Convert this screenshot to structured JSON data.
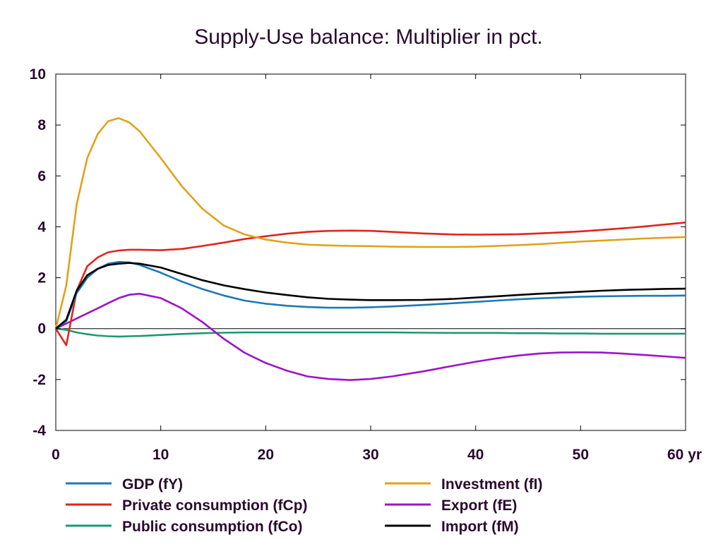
{
  "chart_data": {
    "type": "line",
    "title": "Supply-Use balance: Multiplier in pct.",
    "x_tick_labels": [
      "0",
      "10",
      "20",
      "30",
      "40",
      "50",
      "60 yr"
    ],
    "x_ticks": [
      0,
      10,
      20,
      30,
      40,
      50,
      60
    ],
    "y_ticks": [
      -4,
      -2,
      0,
      2,
      4,
      6,
      8,
      10
    ],
    "xlim": [
      0,
      60
    ],
    "ylim": [
      -4,
      10
    ],
    "grid": false,
    "zero_line": true,
    "legend_position": "bottom",
    "x": [
      0,
      1,
      2,
      3,
      4,
      5,
      6,
      7,
      8,
      10,
      12,
      14,
      16,
      18,
      20,
      22,
      24,
      26,
      28,
      30,
      32,
      35,
      38,
      40,
      42,
      44,
      46,
      48,
      50,
      52,
      54,
      56,
      58,
      60
    ],
    "series": [
      {
        "name": "GDP (fY)",
        "color": "#1f78b4",
        "values": [
          0,
          0.3,
          1.4,
          2.0,
          2.35,
          2.55,
          2.62,
          2.6,
          2.5,
          2.2,
          1.85,
          1.55,
          1.3,
          1.1,
          0.98,
          0.9,
          0.85,
          0.82,
          0.82,
          0.84,
          0.87,
          0.93,
          1.0,
          1.05,
          1.1,
          1.15,
          1.19,
          1.22,
          1.25,
          1.27,
          1.28,
          1.29,
          1.29,
          1.3
        ]
      },
      {
        "name": "Investment (fI)",
        "color": "#e0a21b",
        "values": [
          0,
          1.7,
          4.9,
          6.7,
          7.65,
          8.15,
          8.27,
          8.1,
          7.75,
          6.7,
          5.6,
          4.7,
          4.05,
          3.7,
          3.5,
          3.38,
          3.3,
          3.27,
          3.25,
          3.24,
          3.22,
          3.21,
          3.21,
          3.22,
          3.25,
          3.28,
          3.32,
          3.37,
          3.42,
          3.46,
          3.5,
          3.54,
          3.57,
          3.6
        ]
      },
      {
        "name": "Private consumption (fCp)",
        "color": "#e0251b",
        "values": [
          0,
          -0.65,
          1.5,
          2.45,
          2.8,
          3.0,
          3.07,
          3.1,
          3.1,
          3.08,
          3.13,
          3.25,
          3.38,
          3.52,
          3.63,
          3.73,
          3.8,
          3.84,
          3.85,
          3.84,
          3.8,
          3.74,
          3.7,
          3.69,
          3.7,
          3.71,
          3.74,
          3.78,
          3.82,
          3.88,
          3.94,
          4.01,
          4.09,
          4.17
        ]
      },
      {
        "name": "Export (fE)",
        "color": "#9b14c9",
        "values": [
          0,
          0.2,
          0.4,
          0.6,
          0.8,
          1.0,
          1.2,
          1.33,
          1.37,
          1.2,
          0.8,
          0.25,
          -0.4,
          -0.95,
          -1.35,
          -1.65,
          -1.88,
          -1.98,
          -2.02,
          -1.98,
          -1.88,
          -1.68,
          -1.45,
          -1.3,
          -1.17,
          -1.06,
          -0.98,
          -0.94,
          -0.93,
          -0.94,
          -0.98,
          -1.03,
          -1.09,
          -1.15
        ]
      },
      {
        "name": "Public consumption (fCo)",
        "color": "#1a9a72",
        "values": [
          0,
          -0.05,
          -0.15,
          -0.22,
          -0.27,
          -0.3,
          -0.31,
          -0.3,
          -0.29,
          -0.25,
          -0.21,
          -0.18,
          -0.16,
          -0.15,
          -0.15,
          -0.15,
          -0.15,
          -0.15,
          -0.15,
          -0.15,
          -0.15,
          -0.16,
          -0.17,
          -0.17,
          -0.17,
          -0.18,
          -0.18,
          -0.19,
          -0.19,
          -0.2,
          -0.2,
          -0.2,
          -0.2,
          -0.2
        ]
      },
      {
        "name": "Import (fM)",
        "color": "#000000",
        "values": [
          0,
          0.35,
          1.5,
          2.1,
          2.35,
          2.5,
          2.55,
          2.58,
          2.55,
          2.4,
          2.15,
          1.9,
          1.7,
          1.55,
          1.42,
          1.32,
          1.23,
          1.17,
          1.14,
          1.12,
          1.12,
          1.13,
          1.17,
          1.22,
          1.27,
          1.32,
          1.37,
          1.41,
          1.45,
          1.49,
          1.52,
          1.54,
          1.56,
          1.57
        ]
      }
    ],
    "legend_layout": [
      [
        "GDP (fY)",
        "Investment (fI)"
      ],
      [
        "Private consumption (fCp)",
        "Export (fE)"
      ],
      [
        "Public consumption (fCo)",
        "Import (fM)"
      ]
    ]
  }
}
